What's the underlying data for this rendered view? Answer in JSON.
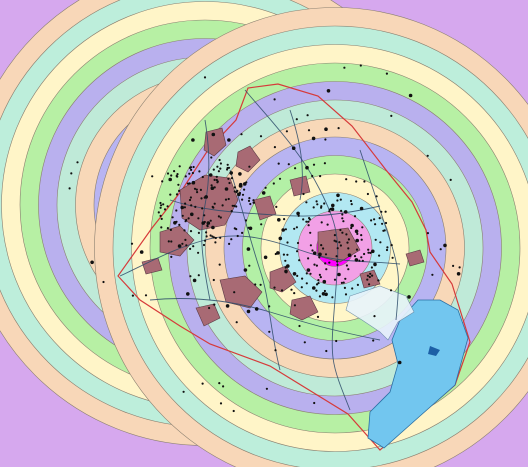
{
  "map": {
    "background_color": "#d6a8ee",
    "ring_colors": [
      "#ff00ff",
      "#f2a0e6",
      "#b2e8f2",
      "#fff6c8",
      "#b3f0a6",
      "#b8b4f2",
      "#f8d8b8",
      "#bfead8",
      "#b9b0ee",
      "#b7f0a4",
      "#fff5c8",
      "#bdeedb",
      "#f8d7b8"
    ],
    "ring_stroke_color": "#8a7f6f",
    "ring_count_per_center": 13,
    "centers": [
      "west-center",
      "east-center"
    ],
    "boundary_color": "#d63a3a",
    "urban_fill_color": "#a86a74",
    "road_color": "#2d4b6a",
    "water_color": "#72c6ef",
    "point_color": "#111111",
    "coastal_sediment_color": "#e8f4fb"
  }
}
